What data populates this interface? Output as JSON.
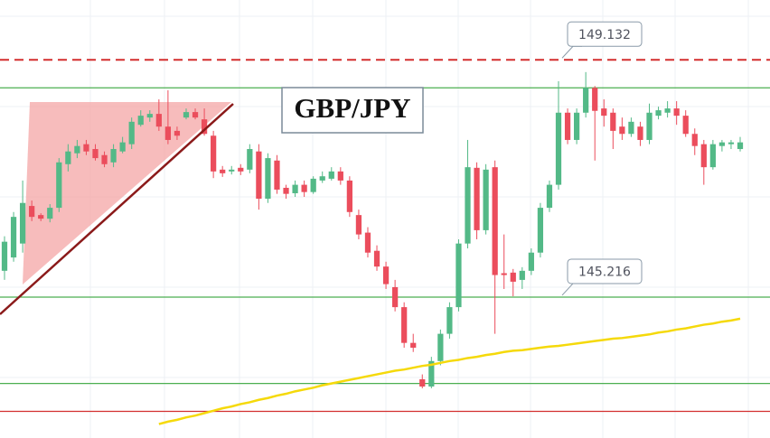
{
  "chart_data": {
    "type": "candlestick",
    "title": "GBP/JPY",
    "ylim": [
      142.89,
      150.12
    ],
    "up_color": "#53b987",
    "down_color": "#eb4d5c",
    "open": [
      145.65,
      145.87,
      146.1,
      146.72,
      146.57,
      146.51,
      146.69,
      147.41,
      147.59,
      147.74,
      147.66,
      147.56,
      147.44,
      147.62,
      147.74,
      148.06,
      148.18,
      148.24,
      148.03,
      147.96,
      148.18,
      148.27,
      148.15,
      147.88,
      147.32,
      147.29,
      147.35,
      147.32,
      147.62,
      146.84,
      147.47,
      147.02,
      146.93,
      147.07,
      146.95,
      147.14,
      147.17,
      147.29,
      147.14,
      146.57,
      146.28,
      145.98,
      145.72,
      145.38,
      145.05,
      144.46,
      143.86,
      143.74,
      144.16,
      144.61,
      145.05,
      146.1,
      147.35,
      146.32,
      147.36,
      145.61,
      145.62,
      145.5,
      145.65,
      145.95,
      146.69,
      147.07,
      148.26,
      147.81,
      148.26,
      148.67,
      148.33,
      148.26,
      148.03,
      147.91,
      148.03,
      147.81,
      148.21,
      148.26,
      148.33,
      148.21,
      147.91,
      147.74,
      147.36,
      147.71,
      147.74,
      147.66
    ],
    "high": [
      146.22,
      146.62,
      147.14,
      146.81,
      146.6,
      146.75,
      147.51,
      147.74,
      147.81,
      147.81,
      147.74,
      147.62,
      147.74,
      147.86,
      148.18,
      148.3,
      148.3,
      148.48,
      148.63,
      148.03,
      148.33,
      148.33,
      148.33,
      147.96,
      147.38,
      147.38,
      147.41,
      147.74,
      147.74,
      147.59,
      147.56,
      147.07,
      147.14,
      147.14,
      147.21,
      147.29,
      147.36,
      147.36,
      147.21,
      146.66,
      146.37,
      146.07,
      145.8,
      145.5,
      145.13,
      144.61,
      143.94,
      144.23,
      144.68,
      145.13,
      146.17,
      147.81,
      147.44,
      147.41,
      147.47,
      146.25,
      145.68,
      145.71,
      146.02,
      146.77,
      147.14,
      148.78,
      148.33,
      148.33,
      148.93,
      148.7,
      148.48,
      148.33,
      148.18,
      148.18,
      148.11,
      148.41,
      148.36,
      148.45,
      148.45,
      148.3,
      148.0,
      147.81,
      147.81,
      147.81,
      147.81,
      147.86
    ],
    "low": [
      145.5,
      145.8,
      145.95,
      146.47,
      146.47,
      146.45,
      146.62,
      147.29,
      147.51,
      147.56,
      147.47,
      147.36,
      147.36,
      147.59,
      147.66,
      148.03,
      148.11,
      147.96,
      147.74,
      147.81,
      148.15,
      148.15,
      147.88,
      147.18,
      147.2,
      147.24,
      147.23,
      147.26,
      146.66,
      146.77,
      146.92,
      146.84,
      146.87,
      146.87,
      146.92,
      147.1,
      147.14,
      147.07,
      146.54,
      146.17,
      145.87,
      145.65,
      145.35,
      144.98,
      144.38,
      144.31,
      143.71,
      143.71,
      144.09,
      144.53,
      144.98,
      146.02,
      146.17,
      146.25,
      144.61,
      145.35,
      145.23,
      145.35,
      145.58,
      145.87,
      146.62,
      146.99,
      147.74,
      147.74,
      148.18,
      147.47,
      148.03,
      147.66,
      147.81,
      147.86,
      147.71,
      147.74,
      148.15,
      148.18,
      148.06,
      147.86,
      147.56,
      147.07,
      147.32,
      147.62,
      147.66,
      147.62
    ],
    "close": [
      146.13,
      146.54,
      146.77,
      146.54,
      146.51,
      146.69,
      147.44,
      147.62,
      147.71,
      147.62,
      147.51,
      147.41,
      147.66,
      147.77,
      148.11,
      148.21,
      148.24,
      148.03,
      147.81,
      147.88,
      148.27,
      148.18,
      147.91,
      147.29,
      147.26,
      147.32,
      147.29,
      147.66,
      146.84,
      147.51,
      146.99,
      146.92,
      147.07,
      146.95,
      147.17,
      147.21,
      147.29,
      147.14,
      146.62,
      146.25,
      145.95,
      145.72,
      145.43,
      145.05,
      144.46,
      144.38,
      143.74,
      144.16,
      144.61,
      145.05,
      146.1,
      147.36,
      146.32,
      147.32,
      145.58,
      145.58,
      145.47,
      145.65,
      145.95,
      146.69,
      147.07,
      148.26,
      147.81,
      148.26,
      148.67,
      148.29,
      148.21,
      147.96,
      147.91,
      148.11,
      147.81,
      148.26,
      148.3,
      148.33,
      148.21,
      147.91,
      147.71,
      147.36,
      147.74,
      147.77,
      147.77,
      147.77
    ],
    "moving_average": {
      "color": "#f5d90a",
      "values": [
        null,
        null,
        null,
        null,
        null,
        null,
        null,
        null,
        null,
        null,
        null,
        null,
        null,
        null,
        null,
        null,
        null,
        143.12,
        143.16,
        143.19,
        143.23,
        143.26,
        143.3,
        143.34,
        143.38,
        143.41,
        143.45,
        143.48,
        143.52,
        143.55,
        143.59,
        143.62,
        143.66,
        143.69,
        143.72,
        143.76,
        143.79,
        143.82,
        143.85,
        143.88,
        143.91,
        143.94,
        143.97,
        144.0,
        144.02,
        144.05,
        144.08,
        144.1,
        144.13,
        144.16,
        144.18,
        144.21,
        144.23,
        144.26,
        144.28,
        144.31,
        144.33,
        144.34,
        144.36,
        144.38,
        144.4,
        144.41,
        144.43,
        144.45,
        144.47,
        144.49,
        144.51,
        144.53,
        144.54,
        144.56,
        144.58,
        144.6,
        144.63,
        144.65,
        144.68,
        144.7,
        144.73,
        144.76,
        144.78,
        144.81,
        144.83,
        144.86
      ]
    },
    "levels": [
      {
        "value": 149.132,
        "color": "#d32f2f",
        "dashed": true,
        "labeled": true
      },
      {
        "value": 148.67,
        "color": "#4caf50",
        "dashed": false,
        "labeled": false
      },
      {
        "value": 145.216,
        "color": "#4caf50",
        "dashed": false,
        "labeled": true
      },
      {
        "value": 143.79,
        "color": "#4caf50",
        "dashed": false,
        "labeled": false
      },
      {
        "value": 143.33,
        "color": "#d32f2f",
        "dashed": false,
        "labeled": false
      }
    ]
  }
}
